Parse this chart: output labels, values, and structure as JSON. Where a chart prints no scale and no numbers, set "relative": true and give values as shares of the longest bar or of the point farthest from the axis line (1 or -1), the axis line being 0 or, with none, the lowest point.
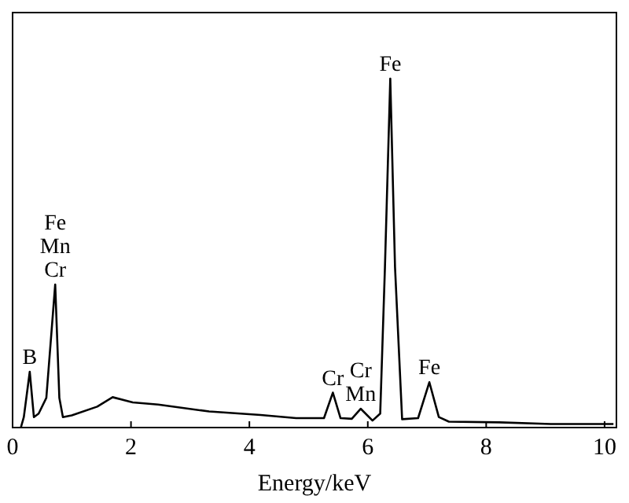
{
  "chart_data": {
    "type": "line",
    "xlabel": "Energy/keV",
    "relative": true,
    "xlim": [
      0,
      10.2
    ],
    "xticks": [
      0,
      2,
      4,
      6,
      8,
      10
    ],
    "grid": false,
    "line_style": "solid",
    "series": [
      {
        "color": "#000000",
        "x": [
          0.14,
          0.19,
          0.29,
          0.36,
          0.44,
          0.57,
          0.72,
          0.79,
          0.85,
          1.0,
          1.43,
          1.69,
          2.03,
          2.46,
          3.32,
          4.19,
          4.79,
          5.26,
          5.41,
          5.54,
          5.73,
          5.88,
          6.08,
          6.21,
          6.29,
          6.38,
          6.46,
          6.58,
          6.85,
          7.04,
          7.2,
          7.37,
          8.22,
          9.09,
          10.15
        ],
        "values": [
          0,
          0.03,
          0.16,
          0.03,
          0.04,
          0.085,
          0.41,
          0.085,
          0.03,
          0.035,
          0.06,
          0.087,
          0.072,
          0.066,
          0.046,
          0.036,
          0.027,
          0.027,
          0.1,
          0.027,
          0.025,
          0.054,
          0.02,
          0.04,
          0.46,
          1.0,
          0.46,
          0.024,
          0.027,
          0.13,
          0.03,
          0.017,
          0.015,
          0.01,
          0.01
        ]
      }
    ],
    "annotations": [
      {
        "text": "B",
        "x": 0.29,
        "y": 0.16
      },
      {
        "text": "Fe",
        "x": 0.72,
        "y": 0.41
      },
      {
        "text": "Mn",
        "x": 0.72,
        "y": 0.41
      },
      {
        "text": "Cr",
        "x": 0.72,
        "y": 0.41
      },
      {
        "text": "Cr",
        "x": 5.41,
        "y": 0.1
      },
      {
        "text": "Cr",
        "x": 5.88,
        "y": 0.054
      },
      {
        "text": "Mn",
        "x": 5.88,
        "y": 0.054
      },
      {
        "text": "Fe",
        "x": 6.38,
        "y": 1.0
      },
      {
        "text": "Fe",
        "x": 7.04,
        "y": 0.13
      }
    ]
  }
}
